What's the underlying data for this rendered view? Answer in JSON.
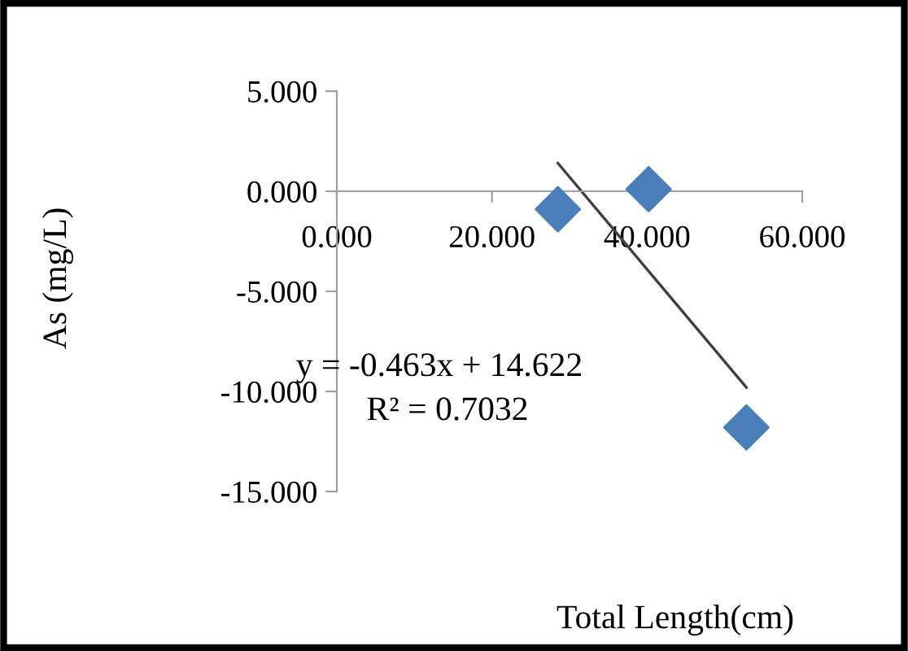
{
  "chart_data": {
    "type": "scatter",
    "xlabel": "Total Length(cm)",
    "ylabel": "As (mg/L)",
    "grid": false,
    "legend": false,
    "xlim": [
      0,
      60
    ],
    "ylim": [
      -15,
      5
    ],
    "xticks": [
      {
        "value": 0,
        "label": "0.000"
      },
      {
        "value": 20,
        "label": "20.000"
      },
      {
        "value": 40,
        "label": "40.000"
      },
      {
        "value": 60,
        "label": "60.000"
      }
    ],
    "yticks": [
      {
        "value": 5,
        "label": "5.000"
      },
      {
        "value": 0,
        "label": "0.000"
      },
      {
        "value": -5,
        "label": "-5.000"
      },
      {
        "value": -10,
        "label": "-10.000"
      },
      {
        "value": -15,
        "label": "-15.000"
      }
    ],
    "series": [
      {
        "color": "#4a7ebb",
        "marker": "diamond",
        "x": [
          28.5,
          40.2,
          52.8
        ],
        "values": [
          -0.9,
          0.1,
          -11.8
        ]
      },
      {
        "type": "line",
        "marker": "none",
        "color": "#404040",
        "x": [
          28.5,
          52.8
        ],
        "values": [
          1.4,
          -9.8
        ]
      }
    ],
    "annotations": [
      "y = -0.463x + 14.622",
      "R² = 0.7032"
    ]
  }
}
